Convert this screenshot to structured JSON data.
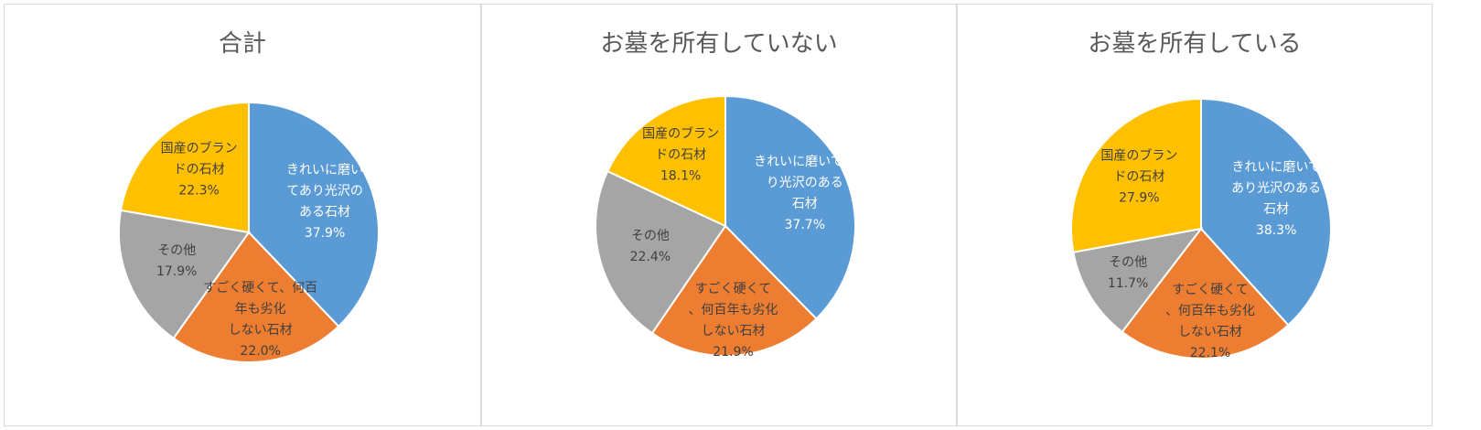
{
  "chart_data": [
    {
      "type": "pie",
      "title": "合計",
      "slices": [
        {
          "label": "きれいに磨いてあり光沢のある石材",
          "value": 37.9,
          "value_label": "37.9%",
          "color": "#5b9bd5"
        },
        {
          "label": "すごく硬くて、何百年も劣化しない石材",
          "value": 22.0,
          "value_label": "22.0%",
          "color": "#ed7d31"
        },
        {
          "label": "その他",
          "value": 17.9,
          "value_label": "17.9%",
          "color": "#a5a5a5"
        },
        {
          "label": "国産のブランドの石材",
          "value": 22.3,
          "value_label": "22.3%",
          "color": "#ffc000"
        }
      ]
    },
    {
      "type": "pie",
      "title": "お墓を所有していない",
      "slices": [
        {
          "label": "きれいに磨いてあり光沢のある石材",
          "value": 37.7,
          "value_label": "37.7%",
          "color": "#5b9bd5"
        },
        {
          "label": "すごく硬くて、何百年も劣化しない石材",
          "value": 21.9,
          "value_label": "21.9%",
          "color": "#ed7d31"
        },
        {
          "label": "その他",
          "value": 22.4,
          "value_label": "22.4%",
          "color": "#a5a5a5"
        },
        {
          "label": "国産のブランドの石材",
          "value": 18.1,
          "value_label": "18.1%",
          "color": "#ffc000"
        }
      ]
    },
    {
      "type": "pie",
      "title": "お墓を所有している",
      "slices": [
        {
          "label": "きれいに磨いてあり光沢のある石材",
          "value": 38.3,
          "value_label": "38.3%",
          "color": "#5b9bd5"
        },
        {
          "label": "すごく硬くて、何百年も劣化しない石材",
          "value": 22.1,
          "value_label": "22.1%",
          "color": "#ed7d31"
        },
        {
          "label": "その他",
          "value": 11.7,
          "value_label": "11.7%",
          "color": "#a5a5a5"
        },
        {
          "label": "国産のブランドの石材",
          "value": 27.9,
          "value_label": "27.9%",
          "color": "#ffc000"
        }
      ]
    }
  ]
}
